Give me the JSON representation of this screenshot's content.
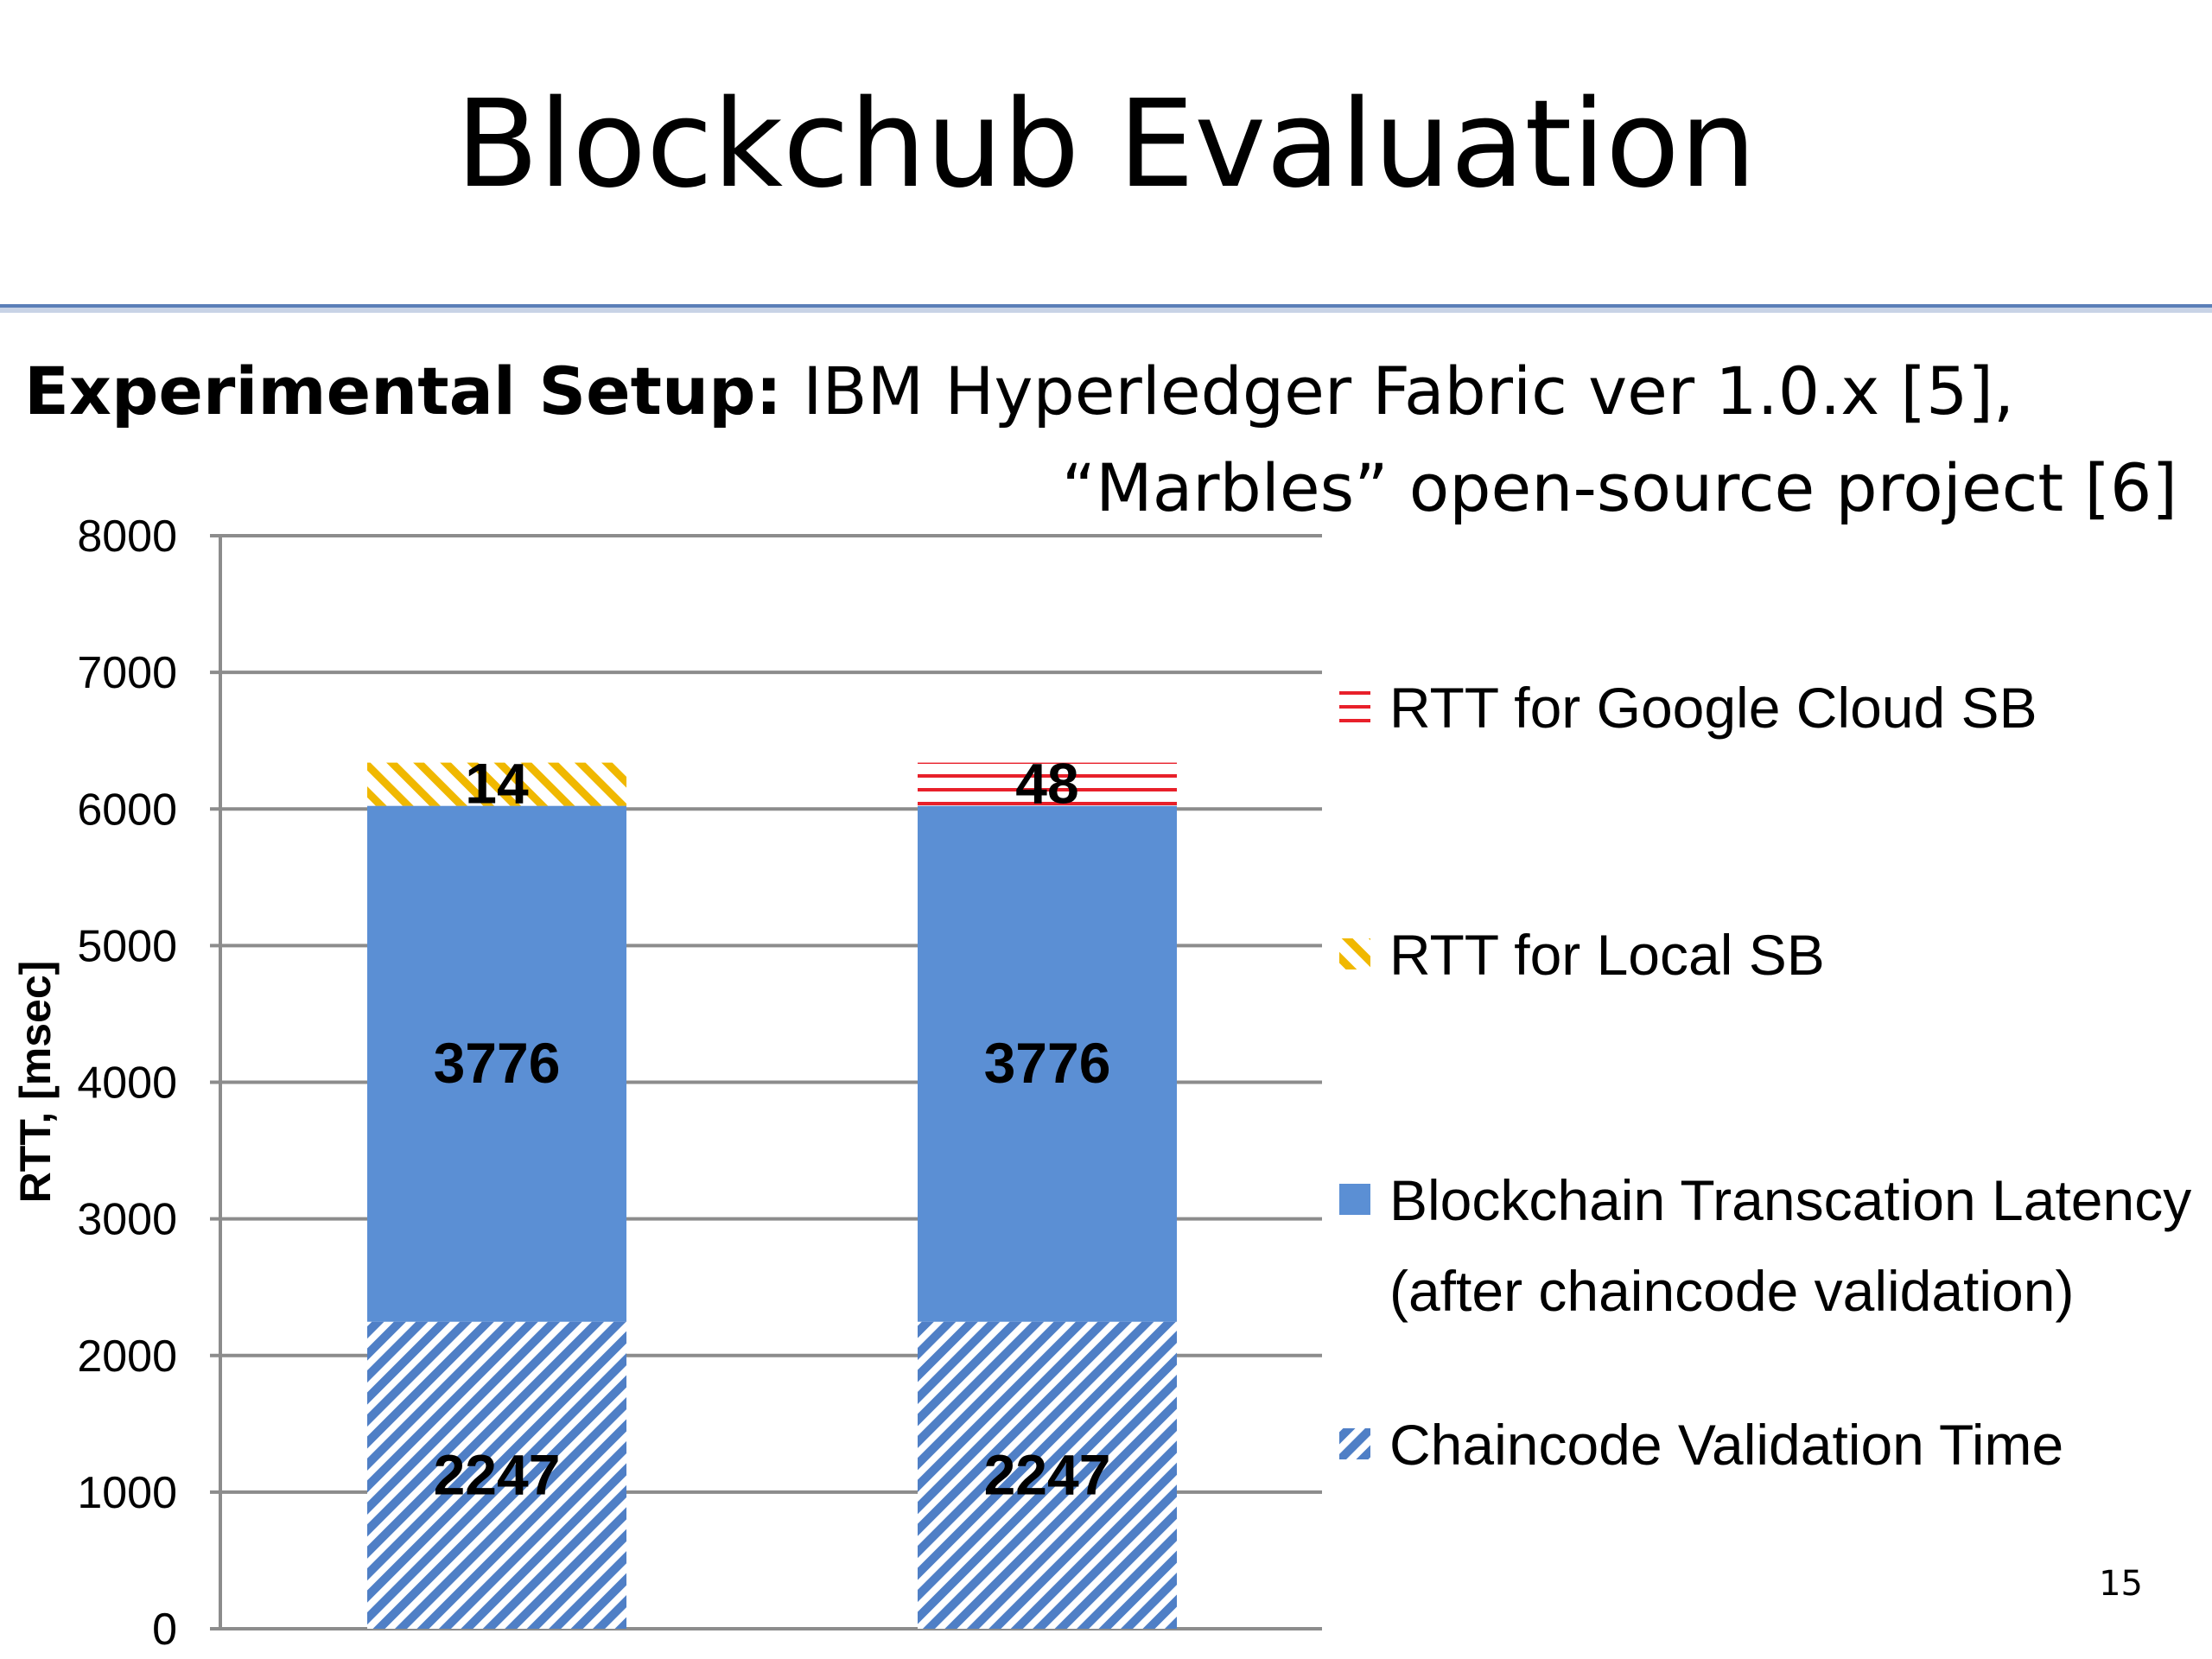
{
  "slide": {
    "title": "Blockchub Evaluation",
    "setup_label": "Experimental Setup:",
    "setup_text": " IBM Hyperledger Fabric ver 1.0.x  [5],",
    "setup_text2": "“Marbles” open-source project [6]",
    "page_number": "15"
  },
  "colors": {
    "blue": "#5b8fd4",
    "blue_hatch": "#4f7fc6",
    "orange_hatch": "#f0b800",
    "red_lines": "#e8202a",
    "grid": "#8c8c8c"
  },
  "chart_data": {
    "type": "bar",
    "stacked": true,
    "ylabel": "RTT, [msec]",
    "ylim": [
      0,
      8000
    ],
    "yticks": [
      "0",
      "1000",
      "2000",
      "3000",
      "4000",
      "5000",
      "6000",
      "7000",
      "8000"
    ],
    "grid": true,
    "legend_position": "right",
    "categories": [
      "",
      ""
    ],
    "series": [
      {
        "name": "Chaincode Validation Time",
        "pattern": "diagonal-hatch-blue",
        "values": [
          2247,
          2247
        ],
        "labels": [
          "2247",
          "2247"
        ]
      },
      {
        "name": "Blockchain Transcation Latency (after chaincode validation)",
        "legend_lines": [
          "Blockchain Transcation Latency",
          "(after chaincode validation)"
        ],
        "pattern": "solid-blue",
        "values": [
          3776,
          3776
        ],
        "labels": [
          "3776",
          "3776"
        ]
      },
      {
        "name": "RTT for Local SB",
        "pattern": "diagonal-hatch-orange",
        "values": [
          14,
          0
        ],
        "labels": [
          "14",
          ""
        ]
      },
      {
        "name": "RTT for Google Cloud SB",
        "pattern": "horizontal-lines-red",
        "values": [
          0,
          48
        ],
        "labels": [
          "",
          "48"
        ]
      }
    ]
  }
}
